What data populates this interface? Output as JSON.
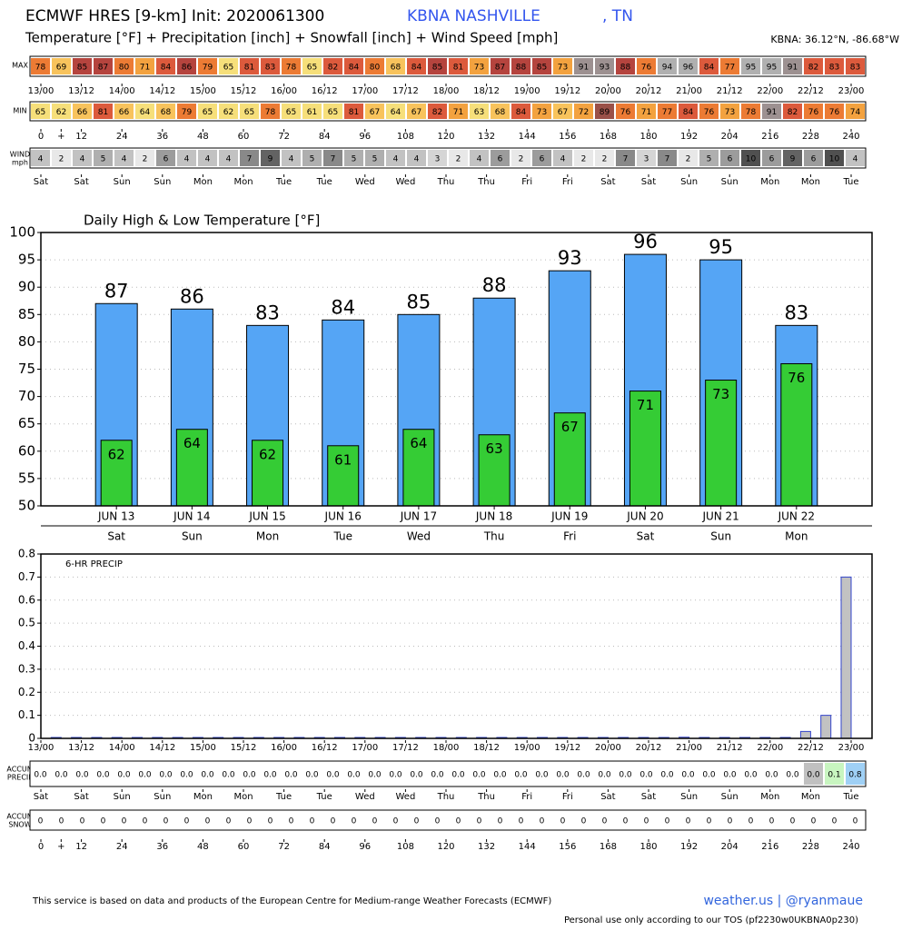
{
  "header": {
    "title": "ECMWF HRES [9-km] Init: 2020061300",
    "station": "KBNA NASHVILLE",
    "state": ", TN",
    "subtitle": "Temperature [°F] + Precipitation [inch] + Snowfall [inch] + Wind Speed [mph]",
    "location": "KBNA: 36.12°N, -86.68°W"
  },
  "time_labels": [
    "13/00",
    "13/12",
    "14/00",
    "14/12",
    "15/00",
    "15/12",
    "16/00",
    "16/12",
    "17/00",
    "17/12",
    "18/00",
    "18/12",
    "19/00",
    "19/12",
    "20/00",
    "20/12",
    "21/00",
    "21/12",
    "22/00",
    "22/12",
    "23/00"
  ],
  "day_labels": [
    "Sat",
    "Sat",
    "Sun",
    "Sun",
    "Mon",
    "Mon",
    "Tue",
    "Tue",
    "Wed",
    "Wed",
    "Thu",
    "Thu",
    "Fri",
    "Fri",
    "Sat",
    "Sat",
    "Sun",
    "Sun",
    "Mon",
    "Mon",
    "Tue"
  ],
  "hour_ticks": [
    0,
    {
      "value": 6,
      "label": "+"
    },
    12,
    24,
    36,
    48,
    60,
    72,
    84,
    96,
    108,
    120,
    132,
    144,
    156,
    168,
    180,
    192,
    204,
    216,
    228,
    240
  ],
  "max_row": {
    "label": "MAX",
    "values": [
      78,
      69,
      85,
      87,
      80,
      71,
      84,
      86,
      79,
      65,
      81,
      83,
      78,
      65,
      82,
      84,
      80,
      68,
      84,
      85,
      81,
      73,
      87,
      88,
      85,
      73,
      91,
      93,
      88,
      76,
      94,
      96,
      84,
      77,
      95,
      95,
      91,
      82,
      83,
      83
    ]
  },
  "min_row": {
    "label": "MIN",
    "values": [
      65,
      62,
      66,
      81,
      66,
      64,
      68,
      79,
      65,
      62,
      65,
      78,
      65,
      61,
      65,
      81,
      67,
      64,
      67,
      82,
      71,
      63,
      68,
      84,
      73,
      67,
      72,
      89,
      76,
      71,
      77,
      84,
      76,
      73,
      78,
      91,
      82,
      76,
      76,
      74
    ]
  },
  "wind_row": {
    "label": "WIND",
    "unit": "mph",
    "values": [
      4,
      2,
      4,
      5,
      4,
      2,
      6,
      4,
      4,
      4,
      7,
      9,
      4,
      5,
      7,
      5,
      5,
      4,
      4,
      3,
      2,
      4,
      6,
      2,
      6,
      4,
      2,
      2,
      7,
      3,
      7,
      2,
      5,
      6,
      10,
      6,
      9,
      6,
      10,
      4
    ]
  },
  "chart_data": [
    {
      "type": "bar",
      "title": "Daily High & Low Temperature [°F]",
      "categories": [
        "JUN 13",
        "JUN 14",
        "JUN 15",
        "JUN 16",
        "JUN 17",
        "JUN 18",
        "JUN 19",
        "JUN 20",
        "JUN 21",
        "JUN 22"
      ],
      "weekdays": [
        "Sat",
        "Sun",
        "Mon",
        "Tue",
        "Wed",
        "Thu",
        "Fri",
        "Sat",
        "Sun",
        "Mon"
      ],
      "series": [
        {
          "color": "#55a5f5",
          "values": [
            87,
            86,
            83,
            84,
            85,
            88,
            93,
            96,
            95,
            83
          ]
        },
        {
          "color": "#35cc35",
          "values": [
            62,
            64,
            62,
            61,
            64,
            63,
            67,
            71,
            73,
            76
          ]
        }
      ],
      "ylim": [
        50,
        100
      ],
      "yticks": [
        50,
        55,
        60,
        65,
        70,
        75,
        80,
        85,
        90,
        95,
        100
      ],
      "grid": true
    },
    {
      "type": "precip",
      "title": "6-HR PRECIP",
      "color": "#c2c2c2",
      "values": [
        0,
        0,
        0,
        0,
        0,
        0,
        0,
        0,
        0,
        0,
        0,
        0,
        0,
        0,
        0,
        0,
        0,
        0,
        0,
        0,
        0,
        0,
        0,
        0,
        0,
        0,
        0,
        0,
        0,
        0,
        0,
        0.005,
        0,
        0,
        0,
        0,
        0,
        0.03,
        0.1,
        0.7
      ],
      "ylim": [
        0,
        0.8
      ],
      "yticks": [
        0,
        0.1,
        0.2,
        0.3,
        0.4,
        0.5,
        0.6,
        0.7,
        0.8
      ],
      "grid": true
    }
  ],
  "accum_precip": {
    "label": "ACCUM",
    "label2": "PRECIP",
    "values": [
      0,
      0,
      0,
      0,
      0,
      0,
      0,
      0,
      0,
      0,
      0,
      0,
      0,
      0,
      0,
      0,
      0,
      0,
      0,
      0,
      0,
      0,
      0,
      0,
      0,
      0,
      0,
      0,
      0,
      0,
      0,
      0.005,
      0.005,
      0.005,
      0.005,
      0.005,
      0.005,
      0.035,
      0.135,
      0.835
    ],
    "value_labels": [
      "0.0",
      "0.0",
      "0.0",
      "0.0",
      "0.0",
      "0.0",
      "0.0",
      "0.0",
      "0.0",
      "0.0",
      "0.0",
      "0.0",
      "0.0",
      "0.0",
      "0.0",
      "0.0",
      "0.0",
      "0.0",
      "0.0",
      "0.0",
      "0.0",
      "0.0",
      "0.0",
      "0.0",
      "0.0",
      "0.0",
      "0.0",
      "0.0",
      "0.0",
      "0.0",
      "0.0",
      "0.0",
      "0.0",
      "0.0",
      "0.0",
      "0.0",
      "0.0",
      "0.0",
      "0.1",
      "0.8"
    ]
  },
  "accum_snow": {
    "label": "ACCUM",
    "label2": "SNOW",
    "values": [
      0,
      0,
      0,
      0,
      0,
      0,
      0,
      0,
      0,
      0,
      0,
      0,
      0,
      0,
      0,
      0,
      0,
      0,
      0,
      0,
      0,
      0,
      0,
      0,
      0,
      0,
      0,
      0,
      0,
      0,
      0,
      0,
      0,
      0,
      0,
      0,
      0,
      0,
      0,
      0
    ]
  },
  "footer": {
    "source": "This service is based on data and products of the European Centre for Medium-range Weather Forecasts (ECMWF)",
    "brand": "weather.us | @ryanmaue",
    "tos": "Personal use only according to our TOS (pf2230w0UKBNA0p230)"
  }
}
